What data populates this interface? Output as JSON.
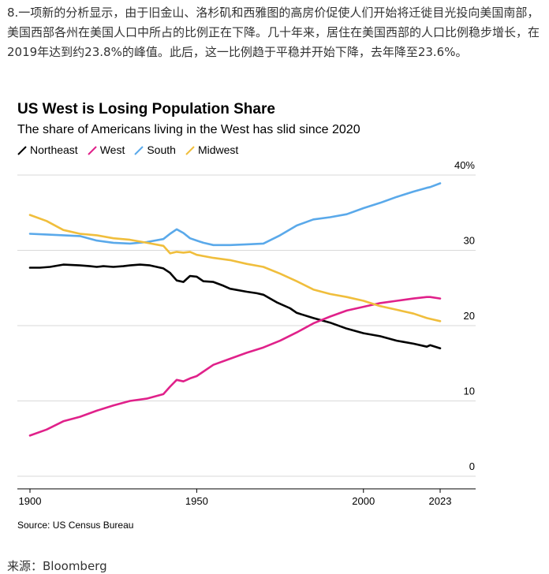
{
  "intro_text": "8.一项新的分析显示，由于旧金山、洛杉矶和西雅图的高房价促使人们开始将迁徙目光投向美国南部，美国西部各州在美国人口中所占的比例正在下降。几十年来，居住在美国西部的人口比例稳步增长，在2019年达到约23.8%的峰值。此后，这一比例趋于平稳并开始下降，去年降至23.6%。",
  "footer_source": "来源：Bloomberg",
  "chart_data": {
    "type": "line",
    "title": "US West is Losing Population Share",
    "subtitle": "The share of Americans living in the West has slid since 2020",
    "source": "Source: US Census Bureau",
    "xlim": [
      1900,
      2023
    ],
    "ylim": [
      0,
      40
    ],
    "x_ticks": [
      1900,
      1950,
      2000,
      2023
    ],
    "y_ticks": [
      0,
      10,
      20,
      30,
      40
    ],
    "y_tick_labels": [
      "0",
      "10",
      "20",
      "30",
      "40%"
    ],
    "grid": "horizontal",
    "legend_position": "top-left",
    "series": [
      {
        "name": "Northeast",
        "color": "#000000",
        "points": [
          [
            1900,
            27.7
          ],
          [
            1903,
            27.7
          ],
          [
            1906,
            27.8
          ],
          [
            1910,
            28.1
          ],
          [
            1915,
            28.0
          ],
          [
            1918,
            27.9
          ],
          [
            1920,
            27.8
          ],
          [
            1922,
            27.9
          ],
          [
            1925,
            27.8
          ],
          [
            1928,
            27.9
          ],
          [
            1930,
            28.0
          ],
          [
            1933,
            28.1
          ],
          [
            1936,
            28.0
          ],
          [
            1940,
            27.6
          ],
          [
            1942,
            27.0
          ],
          [
            1944,
            26.0
          ],
          [
            1946,
            25.8
          ],
          [
            1948,
            26.6
          ],
          [
            1950,
            26.5
          ],
          [
            1952,
            25.9
          ],
          [
            1955,
            25.8
          ],
          [
            1958,
            25.3
          ],
          [
            1960,
            24.9
          ],
          [
            1965,
            24.5
          ],
          [
            1968,
            24.3
          ],
          [
            1970,
            24.1
          ],
          [
            1974,
            23.1
          ],
          [
            1978,
            22.3
          ],
          [
            1980,
            21.7
          ],
          [
            1985,
            21.0
          ],
          [
            1990,
            20.4
          ],
          [
            1995,
            19.6
          ],
          [
            2000,
            19.0
          ],
          [
            2005,
            18.6
          ],
          [
            2010,
            18.0
          ],
          [
            2015,
            17.6
          ],
          [
            2019,
            17.2
          ],
          [
            2020,
            17.4
          ],
          [
            2023,
            17.0
          ]
        ]
      },
      {
        "name": "West",
        "color": "#e0218a",
        "points": [
          [
            1900,
            5.4
          ],
          [
            1905,
            6.2
          ],
          [
            1910,
            7.3
          ],
          [
            1915,
            7.9
          ],
          [
            1920,
            8.7
          ],
          [
            1925,
            9.4
          ],
          [
            1930,
            10.0
          ],
          [
            1935,
            10.3
          ],
          [
            1940,
            10.9
          ],
          [
            1942,
            11.9
          ],
          [
            1944,
            12.8
          ],
          [
            1946,
            12.6
          ],
          [
            1948,
            13.0
          ],
          [
            1950,
            13.3
          ],
          [
            1955,
            14.8
          ],
          [
            1960,
            15.6
          ],
          [
            1965,
            16.4
          ],
          [
            1970,
            17.1
          ],
          [
            1975,
            18.0
          ],
          [
            1980,
            19.1
          ],
          [
            1985,
            20.3
          ],
          [
            1990,
            21.2
          ],
          [
            1995,
            22.0
          ],
          [
            2000,
            22.5
          ],
          [
            2005,
            23.0
          ],
          [
            2010,
            23.3
          ],
          [
            2015,
            23.6
          ],
          [
            2019,
            23.8
          ],
          [
            2020,
            23.8
          ],
          [
            2023,
            23.6
          ]
        ]
      },
      {
        "name": "South",
        "color": "#5aa9ea",
        "points": [
          [
            1900,
            32.2
          ],
          [
            1905,
            32.1
          ],
          [
            1910,
            32.0
          ],
          [
            1915,
            31.9
          ],
          [
            1920,
            31.3
          ],
          [
            1925,
            31.0
          ],
          [
            1930,
            30.9
          ],
          [
            1935,
            31.1
          ],
          [
            1940,
            31.5
          ],
          [
            1942,
            32.2
          ],
          [
            1944,
            32.8
          ],
          [
            1946,
            32.3
          ],
          [
            1948,
            31.6
          ],
          [
            1950,
            31.3
          ],
          [
            1952,
            31.0
          ],
          [
            1955,
            30.7
          ],
          [
            1960,
            30.7
          ],
          [
            1965,
            30.8
          ],
          [
            1970,
            30.9
          ],
          [
            1975,
            32.0
          ],
          [
            1980,
            33.3
          ],
          [
            1985,
            34.1
          ],
          [
            1990,
            34.4
          ],
          [
            1995,
            34.8
          ],
          [
            2000,
            35.6
          ],
          [
            2005,
            36.3
          ],
          [
            2010,
            37.1
          ],
          [
            2015,
            37.8
          ],
          [
            2019,
            38.3
          ],
          [
            2020,
            38.4
          ],
          [
            2023,
            38.9
          ]
        ]
      },
      {
        "name": "Midwest",
        "color": "#f0be3c",
        "points": [
          [
            1900,
            34.7
          ],
          [
            1905,
            33.9
          ],
          [
            1910,
            32.7
          ],
          [
            1915,
            32.2
          ],
          [
            1920,
            32.0
          ],
          [
            1925,
            31.6
          ],
          [
            1930,
            31.4
          ],
          [
            1935,
            31.0
          ],
          [
            1940,
            30.6
          ],
          [
            1942,
            29.6
          ],
          [
            1944,
            29.8
          ],
          [
            1946,
            29.7
          ],
          [
            1948,
            29.8
          ],
          [
            1950,
            29.4
          ],
          [
            1955,
            29.0
          ],
          [
            1960,
            28.7
          ],
          [
            1965,
            28.2
          ],
          [
            1970,
            27.8
          ],
          [
            1975,
            26.9
          ],
          [
            1980,
            25.9
          ],
          [
            1985,
            24.8
          ],
          [
            1990,
            24.2
          ],
          [
            1995,
            23.8
          ],
          [
            2000,
            23.3
          ],
          [
            2005,
            22.6
          ],
          [
            2010,
            22.1
          ],
          [
            2015,
            21.6
          ],
          [
            2019,
            21.0
          ],
          [
            2020,
            20.9
          ],
          [
            2023,
            20.6
          ]
        ]
      }
    ]
  }
}
